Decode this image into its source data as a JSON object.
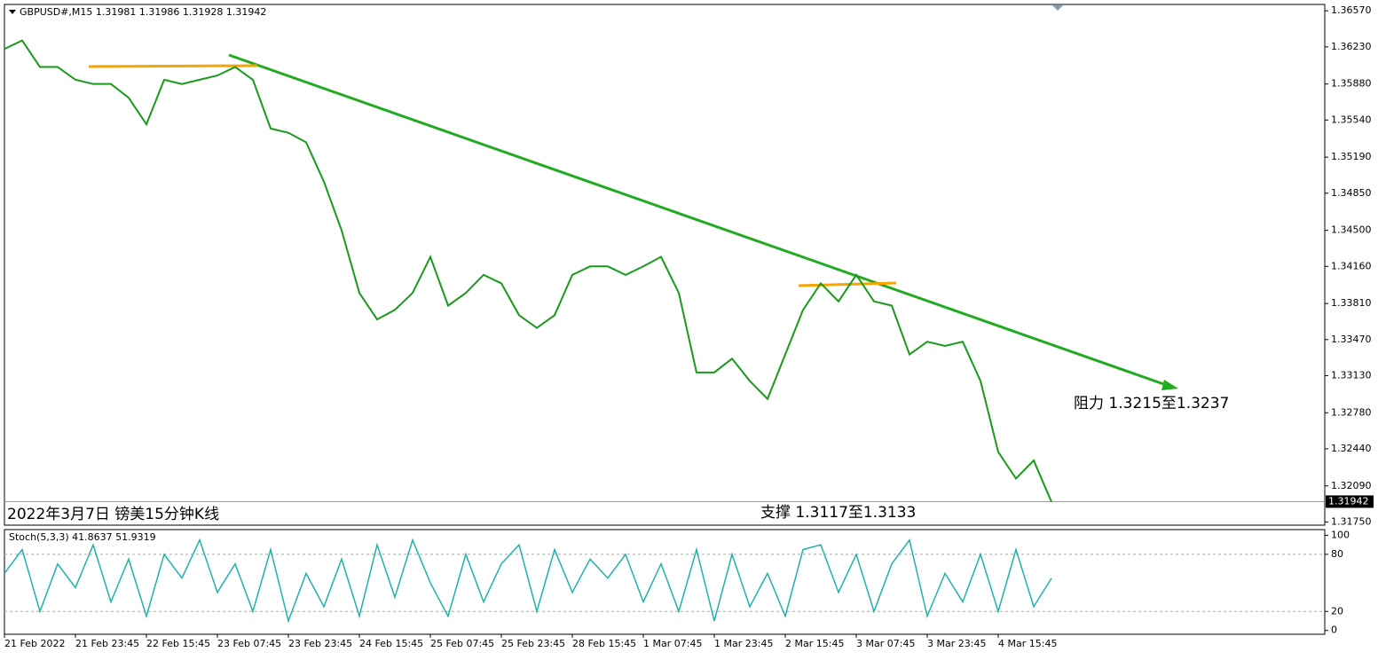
{
  "chart_data": {
    "type": "line",
    "title": "GBPUSD#,M15  1.31981 1.31986 1.31928 1.31942",
    "annotations": [
      "阻力 1.3215至1.3237",
      "支撑 1.3117至1.3133",
      "2022年3月7日 镑美15分钟K线"
    ],
    "color": "#1a9a1a",
    "categories": [
      "21 Feb 2022",
      null,
      null,
      null,
      "21 Feb 23:45",
      null,
      null,
      null,
      "22 Feb 15:45",
      null,
      null,
      null,
      "23 Feb 07:45",
      null,
      null,
      null,
      "23 Feb 23:45",
      null,
      null,
      null,
      "24 Feb 15:45",
      null,
      null,
      null,
      "25 Feb 07:45",
      null,
      null,
      null,
      "25 Feb 23:45",
      null,
      null,
      null,
      "28 Feb 15:45",
      null,
      null,
      null,
      "1 Mar 07:45",
      null,
      null,
      null,
      "1 Mar 23:45",
      null,
      null,
      null,
      "2 Mar 15:45",
      null,
      null,
      null,
      "3 Mar 07:45",
      null,
      null,
      null,
      "3 Mar 23:45",
      null,
      null,
      null,
      "4 Mar 15:45",
      null,
      null,
      null
    ],
    "values": [
      1.3621,
      1.3629,
      1.3604,
      1.3604,
      1.3592,
      1.3588,
      1.3588,
      1.3575,
      1.355,
      1.3592,
      1.3588,
      1.3592,
      1.3596,
      1.3604,
      1.3592,
      1.3546,
      1.3542,
      1.3533,
      1.3496,
      1.345,
      1.3391,
      1.3366,
      1.3375,
      1.3391,
      1.3425,
      1.3379,
      1.3391,
      1.3408,
      1.34,
      1.337,
      1.3358,
      1.337,
      1.3408,
      1.3416,
      1.3416,
      1.3408,
      1.3416,
      1.3425,
      1.3391,
      1.3316,
      1.3316,
      1.3329,
      1.3308,
      1.3291,
      1.3333,
      1.3375,
      1.34,
      1.3383,
      1.3408,
      1.3383,
      1.3379,
      1.3333,
      1.3345,
      1.3341,
      1.3345,
      1.3308,
      1.3241,
      1.3216,
      1.3233,
      1.3194
    ],
    "ylim": [
      1.3172,
      1.3663
    ],
    "yticks": [
      {
        "value": 1.3657,
        "label": "1.36570"
      },
      {
        "value": 1.3623,
        "label": "1.36230"
      },
      {
        "value": 1.3588,
        "label": "1.35880"
      },
      {
        "value": 1.3554,
        "label": "1.35540"
      },
      {
        "value": 1.3519,
        "label": "1.35190"
      },
      {
        "value": 1.3485,
        "label": "1.34850"
      },
      {
        "value": 1.345,
        "label": "1.34500"
      },
      {
        "value": 1.3416,
        "label": "1.34160"
      },
      {
        "value": 1.3381,
        "label": "1.33810"
      },
      {
        "value": 1.3347,
        "label": "1.33470"
      },
      {
        "value": 1.3313,
        "label": "1.33130"
      },
      {
        "value": 1.3278,
        "label": "1.32780"
      },
      {
        "value": 1.3244,
        "label": "1.32440"
      },
      {
        "value": 1.3209,
        "label": "1.32090"
      },
      {
        "value": 1.3175,
        "label": "1.31750"
      }
    ],
    "last_price": {
      "value": 1.31942,
      "label": "1.31942"
    },
    "stoch": {
      "title": "Stoch(5,3,3) 41.8637 51.9319",
      "color": "#20b2aa",
      "values": [
        60,
        85,
        20,
        70,
        45,
        90,
        30,
        75,
        15,
        80,
        55,
        95,
        40,
        70,
        20,
        85,
        10,
        60,
        25,
        75,
        15,
        90,
        35,
        95,
        50,
        15,
        80,
        30,
        70,
        90,
        20,
        85,
        40,
        75,
        55,
        80,
        30,
        70,
        20,
        85,
        10,
        80,
        25,
        60,
        15,
        85,
        90,
        40,
        80,
        20,
        70,
        95,
        15,
        60,
        30,
        80,
        20,
        85,
        25,
        55
      ],
      "ylim": [
        -4,
        106
      ],
      "yticks": [
        0,
        20,
        80,
        100
      ]
    }
  }
}
